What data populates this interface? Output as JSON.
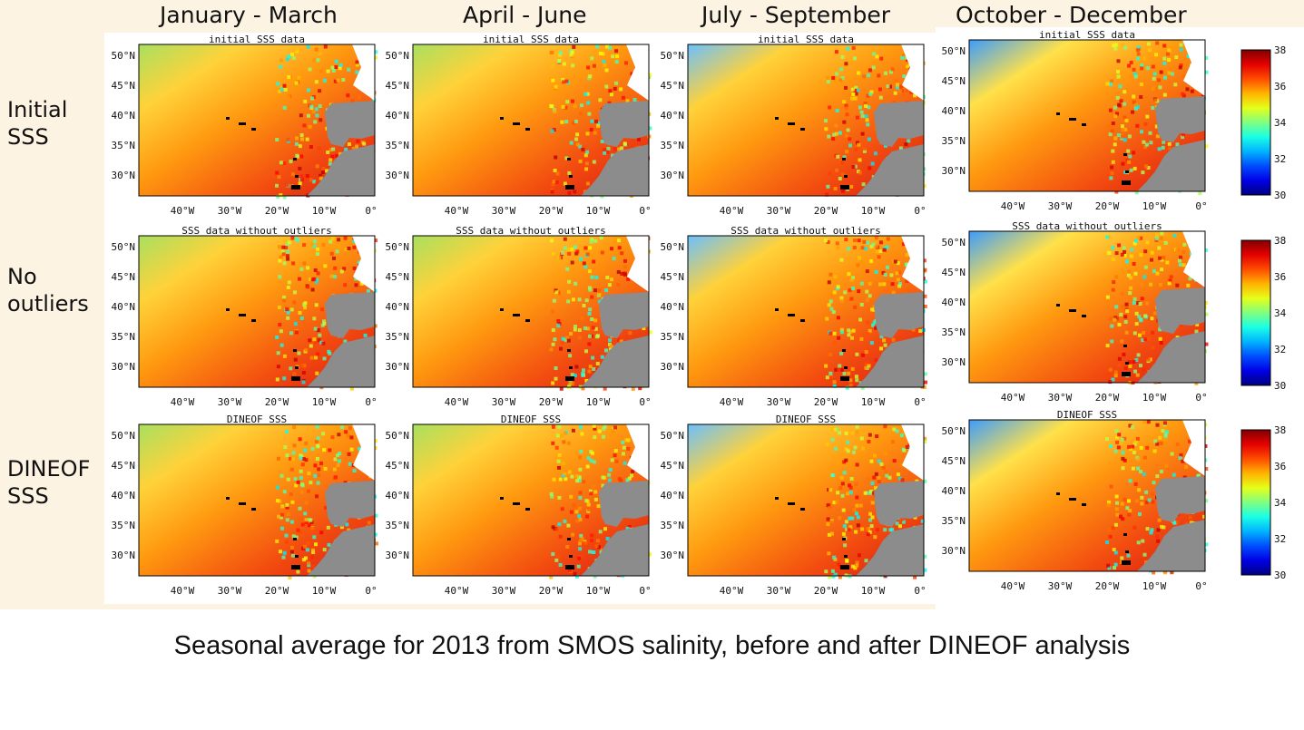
{
  "seasons": [
    "January - March",
    "April - June",
    "July - September",
    "October - December"
  ],
  "rows": [
    {
      "label_line1": "Initial",
      "label_line2": "SSS",
      "panel_title": "initial SSS data"
    },
    {
      "label_line1": "No",
      "label_line2": "outliers",
      "panel_title": "SSS data without outliers"
    },
    {
      "label_line1": "DINEOF",
      "label_line2": "SSS",
      "panel_title": "DINEOF SSS"
    }
  ],
  "lat_ticks": [
    "50",
    "45",
    "40",
    "35",
    "30"
  ],
  "lon_ticks": [
    "40",
    "30",
    "20",
    "10",
    "0"
  ],
  "colorbar": {
    "min": 30,
    "max": 38,
    "ticks": [
      "38",
      "36",
      "34",
      "32",
      "30"
    ],
    "colormap": "jet"
  },
  "colors": {
    "background_band": "#fdf3e3",
    "land": "#8c8c8c",
    "ocean_high": "#e83010",
    "ocean_mid": "#ff8a00",
    "ocean_low": "#2a8cff"
  },
  "caption": "Seasonal average for 2013 from SMOS salinity, before and after DINEOF analysis"
}
